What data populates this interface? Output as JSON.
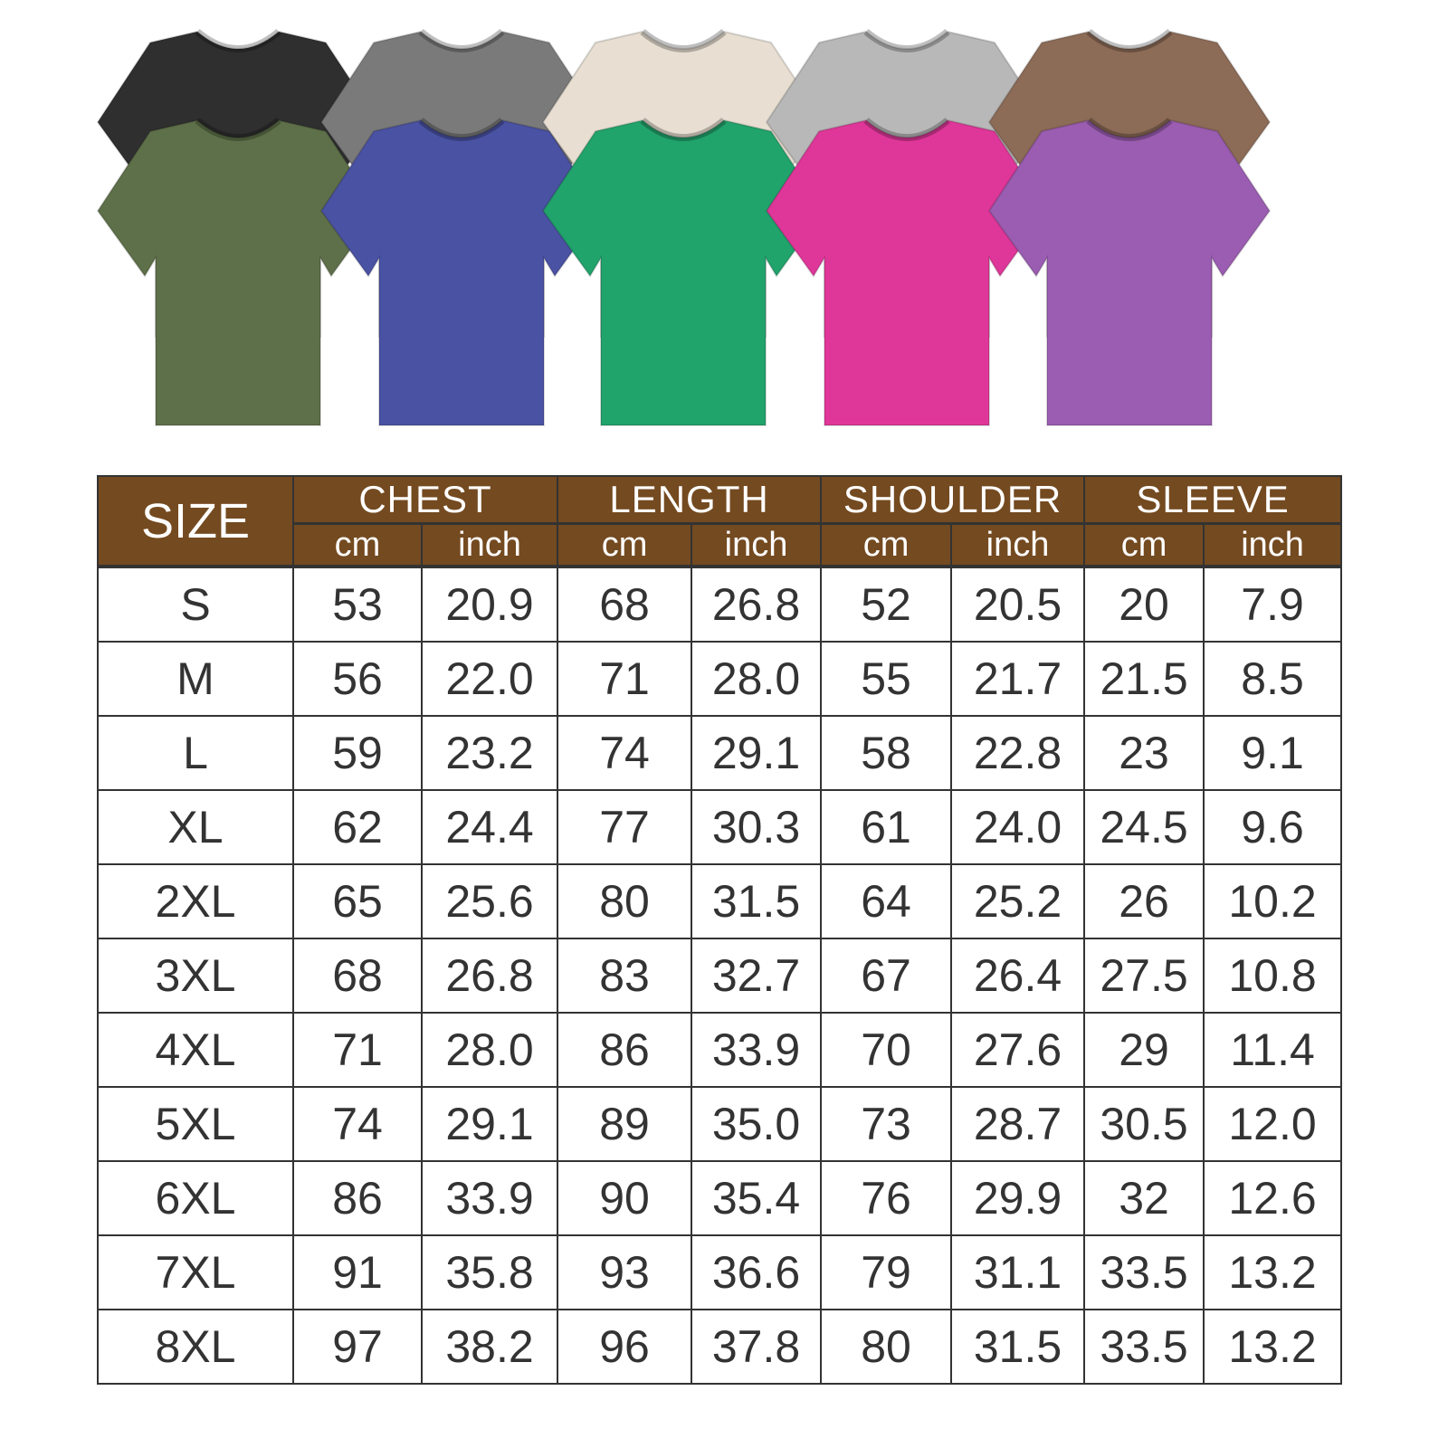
{
  "shirts": {
    "back_row": [
      {
        "color_name": "black",
        "color": "#2f2f2f"
      },
      {
        "color_name": "dark-gray",
        "color": "#7a7a7a"
      },
      {
        "color_name": "beige",
        "color": "#e8dfd2"
      },
      {
        "color_name": "light-gray",
        "color": "#b8b8b8"
      },
      {
        "color_name": "brown",
        "color": "#8c6b57"
      }
    ],
    "front_row": [
      {
        "color_name": "olive",
        "color": "#5e7049"
      },
      {
        "color_name": "blue",
        "color": "#4a52a3"
      },
      {
        "color_name": "green",
        "color": "#21a36c"
      },
      {
        "color_name": "pink",
        "color": "#df3799"
      },
      {
        "color_name": "purple",
        "color": "#9a5db1"
      }
    ]
  },
  "table": {
    "header_color": "#744a20",
    "size_label": "SIZE",
    "groups": [
      "CHEST",
      "LENGTH",
      "SHOULDER",
      "SLEEVE"
    ],
    "units": [
      "cm",
      "inch"
    ],
    "rows": [
      [
        "S",
        "53",
        "20.9",
        "68",
        "26.8",
        "52",
        "20.5",
        "20",
        "7.9"
      ],
      [
        "M",
        "56",
        "22.0",
        "71",
        "28.0",
        "55",
        "21.7",
        "21.5",
        "8.5"
      ],
      [
        "L",
        "59",
        "23.2",
        "74",
        "29.1",
        "58",
        "22.8",
        "23",
        "9.1"
      ],
      [
        "XL",
        "62",
        "24.4",
        "77",
        "30.3",
        "61",
        "24.0",
        "24.5",
        "9.6"
      ],
      [
        "2XL",
        "65",
        "25.6",
        "80",
        "31.5",
        "64",
        "25.2",
        "26",
        "10.2"
      ],
      [
        "3XL",
        "68",
        "26.8",
        "83",
        "32.7",
        "67",
        "26.4",
        "27.5",
        "10.8"
      ],
      [
        "4XL",
        "71",
        "28.0",
        "86",
        "33.9",
        "70",
        "27.6",
        "29",
        "11.4"
      ],
      [
        "5XL",
        "74",
        "29.1",
        "89",
        "35.0",
        "73",
        "28.7",
        "30.5",
        "12.0"
      ],
      [
        "6XL",
        "86",
        "33.9",
        "90",
        "35.4",
        "76",
        "29.9",
        "32",
        "12.6"
      ],
      [
        "7XL",
        "91",
        "35.8",
        "93",
        "36.6",
        "79",
        "31.1",
        "33.5",
        "13.2"
      ],
      [
        "8XL",
        "97",
        "38.2",
        "96",
        "37.8",
        "80",
        "31.5",
        "33.5",
        "13.2"
      ]
    ]
  }
}
